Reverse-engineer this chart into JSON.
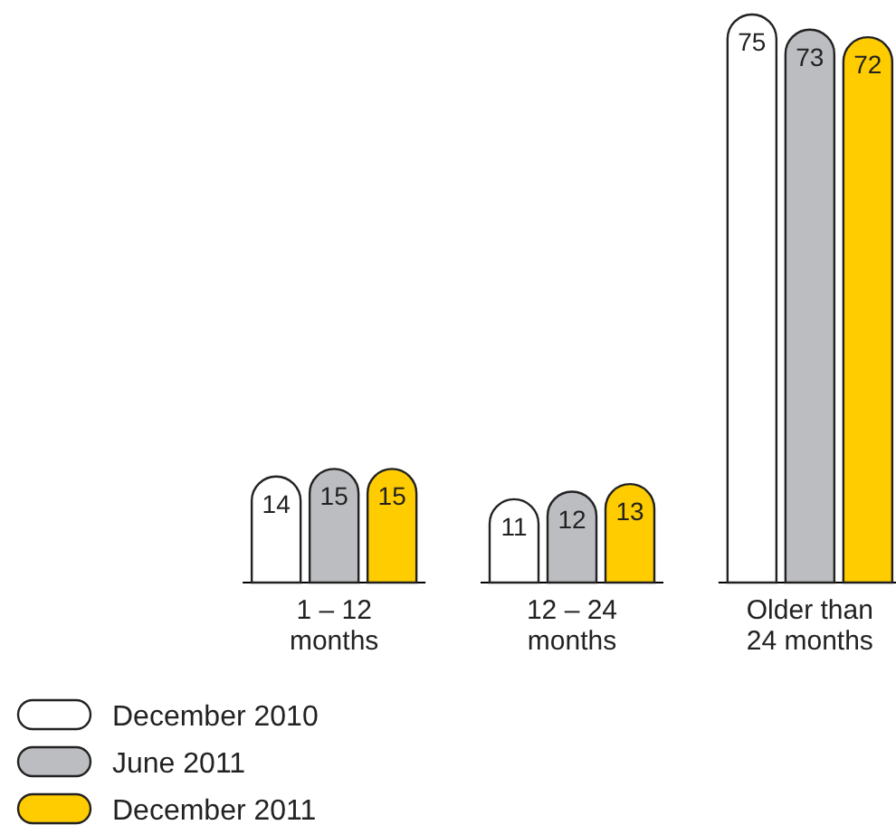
{
  "chart_data": {
    "type": "bar",
    "categories": [
      "1 – 12\nmonths",
      "12 – 24\nmonths",
      "Older than\n24 months"
    ],
    "series": [
      {
        "name": "December 2010",
        "color": "#ffffff",
        "values": [
          14,
          11,
          75
        ]
      },
      {
        "name": "June 2011",
        "color": "#bcbdc0",
        "values": [
          15,
          12,
          73
        ]
      },
      {
        "name": "December 2011",
        "color": "#ffcc00",
        "values": [
          15,
          13,
          72
        ]
      }
    ],
    "data_labels": true,
    "legend": "bottom left"
  }
}
